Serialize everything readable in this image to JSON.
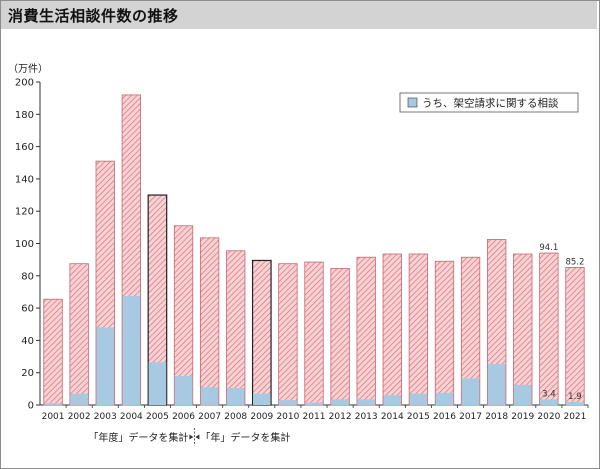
{
  "page_title": "消費生活相談件数の推移",
  "chart_data": {
    "type": "bar",
    "title": "消費生活相談件数の推移",
    "unit_label": "（万件）",
    "ylim": [
      0,
      200
    ],
    "yticks": [
      0,
      20,
      40,
      60,
      80,
      100,
      120,
      140,
      160,
      180,
      200
    ],
    "grid": false,
    "legend": {
      "position": "top-right"
    },
    "categories": [
      "2001",
      "2002",
      "2003",
      "2004",
      "2005",
      "2006",
      "2007",
      "2008",
      "2009",
      "2010",
      "2011",
      "2012",
      "2013",
      "2014",
      "2015",
      "2016",
      "2017",
      "2018",
      "2019",
      "2020",
      "2021"
    ],
    "series": [
      {
        "name": "",
        "color": "#e8a9ae",
        "values": [
          65.5,
          87.5,
          151,
          192,
          130,
          111,
          103.5,
          95.5,
          89.5,
          87.5,
          88.5,
          84.5,
          91.5,
          93.5,
          93.5,
          89,
          91.5,
          102.5,
          93.5,
          94.1,
          85.2
        ]
      },
      {
        "name": "うち、架空請求に関する相談",
        "color": "#a7c9e2",
        "values": [
          1,
          7,
          48,
          67.5,
          26.5,
          18,
          11,
          10.5,
          7,
          3,
          1.5,
          3.5,
          3.5,
          6,
          7,
          7.5,
          16.5,
          25.5,
          12.5,
          3.4,
          1.9
        ]
      }
    ],
    "data_labels": [
      {
        "category": "2020",
        "series": 0,
        "text": "94.1"
      },
      {
        "category": "2021",
        "series": 0,
        "text": "85.2"
      },
      {
        "category": "2020",
        "series": 1,
        "text": "3.4"
      },
      {
        "category": "2021",
        "series": 1,
        "text": "1.9"
      }
    ],
    "emphasized_outline_categories": [
      "2005",
      "2009"
    ],
    "annotations": {
      "left": "「年度」データを集計",
      "right": "「年」データを集計",
      "boundary_between": [
        "2004",
        "2005"
      ]
    }
  }
}
